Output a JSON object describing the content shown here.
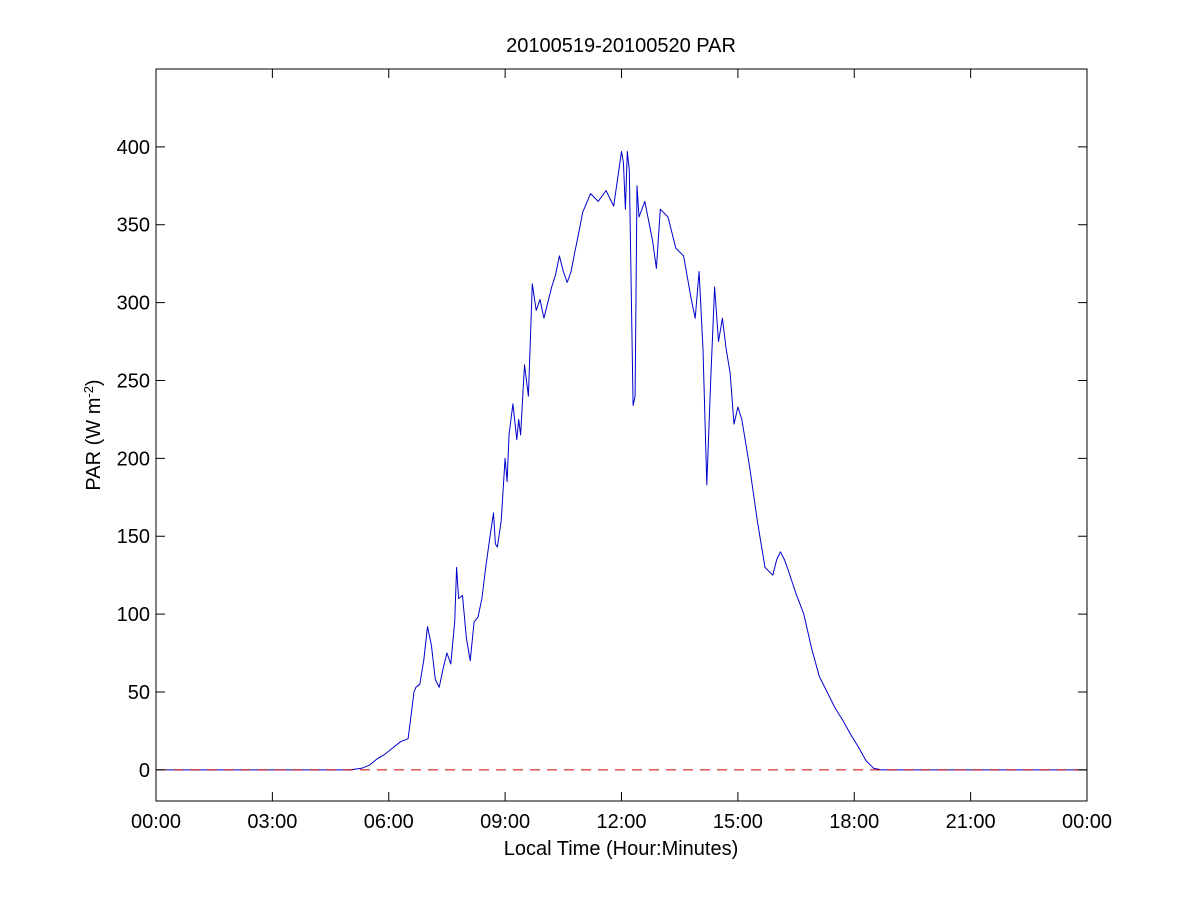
{
  "chart_data": {
    "type": "line",
    "title": "20100519-20100520 PAR",
    "xlabel": "Local Time (Hour:Minutes)",
    "ylabel": "PAR (W m",
    "ylabel_sup": "-2",
    "ylabel_close": ")",
    "xlim": [
      0,
      24
    ],
    "ylim": [
      -20,
      450
    ],
    "x_ticks": [
      0,
      3,
      6,
      9,
      12,
      15,
      18,
      21,
      24
    ],
    "x_tick_labels": [
      "00:00",
      "03:00",
      "06:00",
      "09:00",
      "12:00",
      "15:00",
      "18:00",
      "21:00",
      "00:00"
    ],
    "y_ticks": [
      0,
      50,
      100,
      150,
      200,
      250,
      300,
      350,
      400
    ],
    "y_tick_labels": [
      "0",
      "50",
      "100",
      "150",
      "200",
      "250",
      "300",
      "350",
      "400"
    ],
    "grid": false,
    "series": [
      {
        "color": "#0000cc",
        "style": "solid",
        "x": [
          0,
          5.0,
          5.3,
          5.5,
          5.7,
          5.9,
          6.1,
          6.3,
          6.5,
          6.55,
          6.65,
          6.7,
          6.8,
          6.9,
          7.0,
          7.1,
          7.2,
          7.3,
          7.4,
          7.5,
          7.6,
          7.7,
          7.75,
          7.8,
          7.9,
          8.0,
          8.1,
          8.2,
          8.3,
          8.4,
          8.5,
          8.6,
          8.7,
          8.75,
          8.8,
          8.9,
          9.0,
          9.05,
          9.1,
          9.2,
          9.3,
          9.35,
          9.4,
          9.5,
          9.6,
          9.7,
          9.8,
          9.9,
          10.0,
          10.1,
          10.2,
          10.3,
          10.4,
          10.5,
          10.6,
          10.7,
          10.8,
          10.9,
          11.0,
          11.2,
          11.4,
          11.6,
          11.8,
          12.0,
          12.05,
          12.1,
          12.15,
          12.2,
          12.3,
          12.35,
          12.4,
          12.45,
          12.6,
          12.8,
          12.9,
          13.0,
          13.2,
          13.4,
          13.6,
          13.8,
          13.9,
          14.0,
          14.1,
          14.2,
          14.3,
          14.4,
          14.5,
          14.6,
          14.7,
          14.8,
          14.9,
          15.0,
          15.1,
          15.3,
          15.5,
          15.7,
          15.9,
          16.0,
          16.1,
          16.2,
          16.3,
          16.5,
          16.7,
          16.9,
          17.1,
          17.3,
          17.5,
          17.7,
          17.9,
          18.1,
          18.3,
          18.5,
          18.7,
          18.9,
          19.1,
          24
        ],
        "y": [
          0,
          0,
          1,
          3,
          7,
          10,
          14,
          18,
          20,
          30,
          50,
          53,
          55,
          70,
          92,
          80,
          58,
          53,
          65,
          75,
          68,
          95,
          130,
          110,
          112,
          85,
          70,
          95,
          98,
          110,
          130,
          148,
          165,
          145,
          143,
          160,
          200,
          185,
          215,
          235,
          212,
          225,
          215,
          260,
          240,
          312,
          295,
          302,
          290,
          300,
          310,
          318,
          330,
          320,
          313,
          320,
          333,
          345,
          358,
          370,
          365,
          372,
          362,
          397,
          390,
          360,
          397,
          385,
          234,
          240,
          375,
          355,
          365,
          340,
          322,
          360,
          355,
          335,
          330,
          302,
          290,
          320,
          270,
          183,
          250,
          310,
          275,
          290,
          270,
          255,
          222,
          233,
          225,
          195,
          160,
          130,
          125,
          135,
          140,
          135,
          128,
          113,
          100,
          78,
          60,
          50,
          40,
          32,
          23,
          15,
          6,
          1,
          0,
          0,
          0,
          0
        ]
      },
      {
        "color": "#cc0000",
        "style": "dashed",
        "x": [
          0,
          24
        ],
        "y": [
          0,
          0
        ]
      }
    ]
  }
}
